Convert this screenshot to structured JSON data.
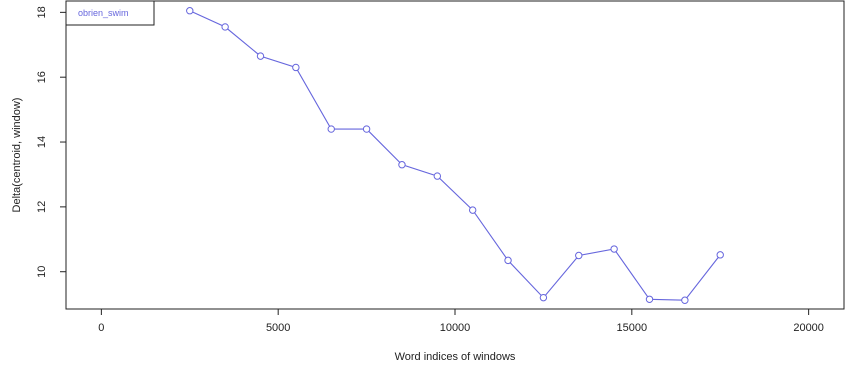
{
  "chart_data": {
    "type": "line",
    "title": "",
    "xlabel": "Word indices of windows",
    "ylabel": "Delta(centroid, window)",
    "xlim": [
      -1000,
      21000
    ],
    "ylim": [
      8.85,
      18.35
    ],
    "xticks": [
      0,
      5000,
      10000,
      15000,
      20000
    ],
    "yticks": [
      10,
      12,
      14,
      16,
      18
    ],
    "grid": false,
    "legend_position": "top-left",
    "series": [
      {
        "name": "obrien_swim",
        "color": "#6666dd",
        "x": [
          2500,
          3500,
          4500,
          5500,
          6500,
          7500,
          8500,
          9500,
          10500,
          11500,
          12500,
          13500,
          14500,
          15500,
          16500,
          17500
        ],
        "y": [
          18.05,
          17.55,
          16.65,
          16.3,
          14.4,
          14.4,
          13.3,
          12.95,
          11.9,
          10.35,
          9.2,
          10.5,
          10.7,
          9.15,
          9.12,
          10.52
        ]
      }
    ]
  }
}
